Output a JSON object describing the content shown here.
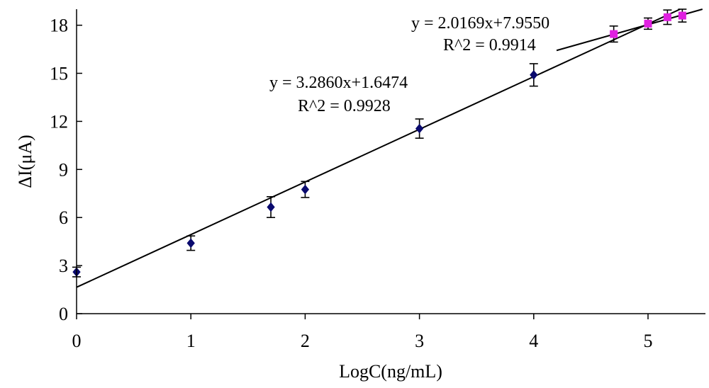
{
  "chart_data": {
    "type": "scatter",
    "xlabel": "LogC(ng/mL)",
    "ylabel": "ΔI(μA)",
    "xlim": [
      0,
      5.5
    ],
    "ylim": [
      0,
      19
    ],
    "xticks": [
      "0",
      "1",
      "2",
      "3",
      "4",
      "5"
    ],
    "yticks": [
      "0",
      "3",
      "6",
      "9",
      "12",
      "15",
      "18"
    ],
    "grid": false,
    "series": [
      {
        "color": "#0a0a6e",
        "marker": "diamond",
        "points": [
          {
            "x": 0,
            "y": 2.6,
            "err": 0.3
          },
          {
            "x": 1,
            "y": 4.4,
            "err": 0.45
          },
          {
            "x": 1.7,
            "y": 6.65,
            "err": 0.65
          },
          {
            "x": 2,
            "y": 7.75,
            "err": 0.5
          },
          {
            "x": 3,
            "y": 11.55,
            "err": 0.6
          },
          {
            "x": 4,
            "y": 14.9,
            "err": 0.7
          }
        ],
        "fit": {
          "slope": 3.286,
          "intercept": 1.6474,
          "x_range": [
            0,
            5.5
          ]
        }
      },
      {
        "color": "#e020e0",
        "marker": "square",
        "points": [
          {
            "x": 4.7,
            "y": 17.45,
            "err": 0.5
          },
          {
            "x": 5,
            "y": 18.1,
            "err": 0.35
          },
          {
            "x": 5.17,
            "y": 18.5,
            "err": 0.45
          },
          {
            "x": 5.3,
            "y": 18.6,
            "err": 0.4
          }
        ],
        "fit": {
          "slope": 2.0169,
          "intercept": 7.955,
          "x_range": [
            4.2,
            5.5
          ]
        }
      }
    ],
    "annotations": [
      {
        "text1": "y = 3.2860x+1.6474",
        "text2": "R^2 = 0.9928"
      },
      {
        "text1": "y = 2.0169x+7.9550",
        "text2": "R^2 = 0.9914"
      }
    ]
  }
}
